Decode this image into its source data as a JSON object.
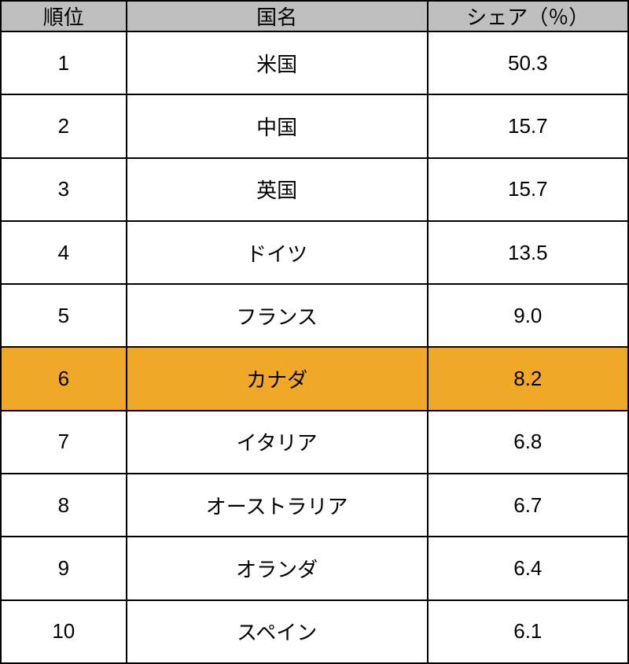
{
  "table": {
    "columns": [
      {
        "key": "rank",
        "label": "順位",
        "width_pct": 20
      },
      {
        "key": "country",
        "label": "国名",
        "width_pct": 48
      },
      {
        "key": "share",
        "label": "シェア（％）",
        "width_pct": 32
      }
    ],
    "header_bg": "#bfbfbf",
    "highlight_bg": "#f0a926",
    "row_bg": "#ffffff",
    "border_color": "#000000",
    "text_color": "#000000",
    "font_size": 26,
    "rows": [
      {
        "rank": "1",
        "country": "米国",
        "share": "50.3",
        "highlight": false
      },
      {
        "rank": "2",
        "country": "中国",
        "share": "15.7",
        "highlight": false
      },
      {
        "rank": "3",
        "country": "英国",
        "share": "15.7",
        "highlight": false
      },
      {
        "rank": "4",
        "country": "ドイツ",
        "share": "13.5",
        "highlight": false
      },
      {
        "rank": "5",
        "country": "フランス",
        "share": "9.0",
        "highlight": false
      },
      {
        "rank": "6",
        "country": "カナダ",
        "share": "8.2",
        "highlight": true
      },
      {
        "rank": "7",
        "country": "イタリア",
        "share": "6.8",
        "highlight": false
      },
      {
        "rank": "8",
        "country": "オーストラリア",
        "share": "6.7",
        "highlight": false
      },
      {
        "rank": "9",
        "country": "オランダ",
        "share": "6.4",
        "highlight": false
      },
      {
        "rank": "10",
        "country": "スペイン",
        "share": "6.1",
        "highlight": false
      }
    ]
  }
}
